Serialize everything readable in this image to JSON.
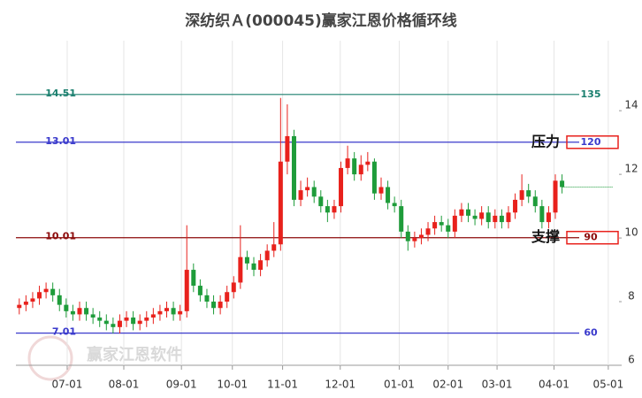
{
  "chart_data": {
    "type": "candlestick",
    "title": "深纺织Ａ(000045)赢家江恩价格循环线",
    "watermark": "赢家江恩软件",
    "xlim": [
      0,
      90
    ],
    "xticks": [
      {
        "value": 7.65,
        "label": "07-01"
      },
      {
        "value": 16.1,
        "label": "08-01"
      },
      {
        "value": 24.7,
        "label": "09-01"
      },
      {
        "value": 32.3,
        "label": "10-01"
      },
      {
        "value": 39.8,
        "label": "11-01"
      },
      {
        "value": 48.4,
        "label": "12-01"
      },
      {
        "value": 57.2,
        "label": "01-01"
      },
      {
        "value": 64.5,
        "label": "02-01"
      },
      {
        "value": 71.8,
        "label": "03-01"
      },
      {
        "value": 80.3,
        "label": "04-01"
      },
      {
        "value": 88.4,
        "label": "05-01"
      }
    ],
    "ylim": [
      6,
      16.2
    ],
    "yticks": [
      6,
      8,
      10,
      12,
      14
    ],
    "up_color": "#e8211c",
    "down_color": "#1e9c3a",
    "open": [
      7.8,
      7.9,
      8.0,
      8.1,
      8.3,
      8.4,
      8.2,
      7.9,
      7.7,
      7.6,
      7.8,
      7.6,
      7.5,
      7.4,
      7.3,
      7.2,
      7.4,
      7.5,
      7.3,
      7.4,
      7.5,
      7.6,
      7.7,
      7.8,
      7.6,
      7.7,
      9.0,
      8.5,
      8.2,
      8.0,
      7.8,
      8.0,
      8.3,
      8.6,
      9.4,
      9.2,
      9.0,
      9.3,
      9.6,
      9.8,
      12.4,
      13.2,
      11.2,
      11.5,
      11.6,
      11.3,
      11.0,
      10.8,
      11.0,
      12.2,
      12.5,
      12.0,
      12.3,
      12.4,
      11.4,
      11.6,
      11.1,
      11.0,
      10.2,
      9.9,
      10.0,
      10.1,
      10.3,
      10.5,
      10.4,
      10.2,
      10.7,
      10.9,
      10.7,
      10.6,
      10.8,
      10.5,
      10.7,
      10.5,
      10.8,
      11.2,
      11.5,
      11.3,
      11.0,
      10.5,
      10.8,
      11.8
    ],
    "close": [
      7.9,
      8.0,
      8.1,
      8.3,
      8.4,
      8.2,
      7.9,
      7.7,
      7.6,
      7.8,
      7.6,
      7.5,
      7.4,
      7.3,
      7.2,
      7.4,
      7.5,
      7.3,
      7.4,
      7.5,
      7.6,
      7.7,
      7.8,
      7.6,
      7.7,
      9.0,
      8.5,
      8.2,
      8.0,
      7.8,
      8.0,
      8.3,
      8.6,
      9.4,
      9.2,
      9.0,
      9.3,
      9.6,
      9.8,
      12.4,
      13.2,
      11.2,
      11.5,
      11.6,
      11.3,
      11.0,
      10.8,
      11.0,
      12.2,
      12.5,
      12.0,
      12.3,
      12.4,
      11.4,
      11.6,
      11.1,
      11.0,
      10.2,
      9.9,
      10.0,
      10.1,
      10.3,
      10.5,
      10.4,
      10.2,
      10.7,
      10.9,
      10.7,
      10.6,
      10.8,
      10.5,
      10.7,
      10.5,
      10.8,
      11.2,
      11.5,
      11.3,
      11.0,
      10.5,
      10.8,
      11.8,
      11.6
    ],
    "high": [
      8.1,
      8.2,
      8.3,
      8.5,
      8.6,
      8.6,
      8.4,
      8.1,
      7.9,
      8.0,
      8.0,
      7.8,
      7.7,
      7.6,
      7.5,
      7.6,
      7.7,
      7.7,
      7.6,
      7.7,
      7.8,
      7.9,
      8.0,
      8.0,
      7.9,
      10.4,
      9.2,
      8.7,
      8.4,
      8.2,
      8.2,
      8.5,
      8.8,
      10.4,
      9.6,
      9.4,
      9.5,
      9.8,
      10.5,
      14.4,
      14.2,
      13.4,
      11.8,
      11.9,
      11.8,
      11.5,
      11.2,
      11.2,
      12.4,
      12.9,
      12.7,
      12.6,
      12.7,
      12.5,
      11.9,
      11.8,
      11.3,
      11.2,
      10.4,
      10.2,
      10.3,
      10.5,
      10.7,
      10.7,
      10.6,
      10.9,
      11.1,
      11.1,
      10.9,
      11.0,
      11.0,
      10.9,
      10.9,
      11.0,
      11.4,
      12.0,
      11.7,
      11.5,
      11.2,
      11.0,
      12.0,
      12.0
    ],
    "low": [
      7.6,
      7.7,
      7.8,
      7.9,
      8.1,
      8.0,
      7.7,
      7.5,
      7.4,
      7.4,
      7.4,
      7.3,
      7.2,
      7.1,
      7.0,
      7.0,
      7.2,
      7.1,
      7.1,
      7.2,
      7.3,
      7.4,
      7.5,
      7.4,
      7.4,
      7.5,
      8.3,
      8.0,
      7.8,
      7.6,
      7.6,
      7.8,
      8.1,
      8.4,
      9.0,
      8.8,
      8.8,
      9.1,
      9.4,
      9.6,
      12.0,
      11.0,
      11.0,
      11.3,
      11.1,
      10.8,
      10.5,
      10.6,
      10.8,
      12.0,
      11.8,
      11.8,
      12.1,
      11.2,
      11.2,
      10.9,
      10.8,
      10.0,
      9.6,
      9.7,
      9.8,
      9.9,
      10.1,
      10.2,
      10.0,
      10.0,
      10.5,
      10.5,
      10.4,
      10.4,
      10.3,
      10.3,
      10.3,
      10.3,
      10.6,
      11.0,
      11.1,
      10.8,
      10.3,
      10.3,
      10.6,
      11.4
    ],
    "levels": [
      {
        "price": 14.51,
        "cycle": 135,
        "color": "#1a7f6e"
      },
      {
        "price": 13.01,
        "cycle": 120,
        "color": "#3a3acc",
        "annotation": "压力"
      },
      {
        "price": 10.01,
        "cycle": 90,
        "color": "#8b0a0a",
        "annotation": "支撑"
      },
      {
        "price": 7.01,
        "cycle": 60,
        "color": "#3a3acc"
      }
    ]
  }
}
